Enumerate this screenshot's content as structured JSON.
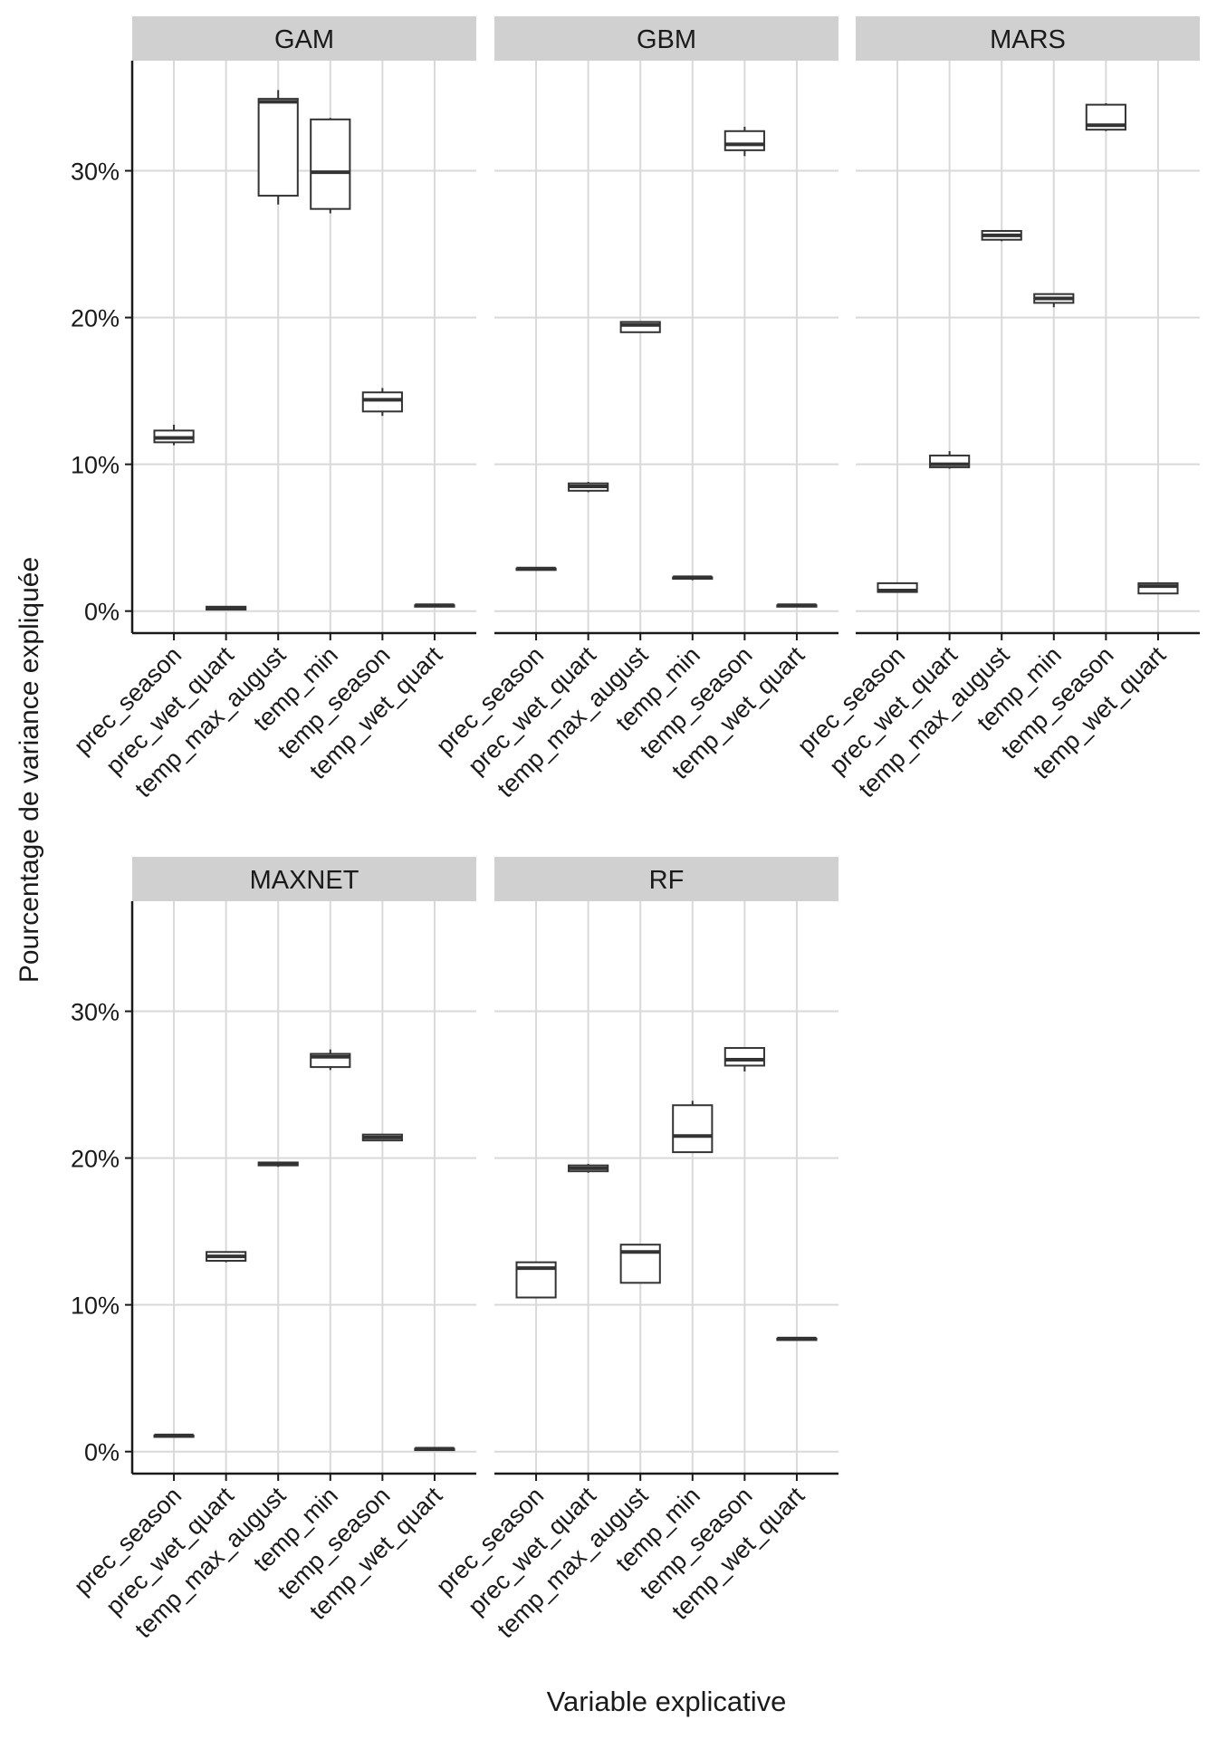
{
  "chart_data": {
    "type": "boxplot",
    "facet_by": "model",
    "xlabel": "Variable explicative",
    "ylabel": "Pourcentage de variance expliquée",
    "ylim": [
      -1.5,
      37.5
    ],
    "y_ticks": [
      0,
      10,
      20,
      30
    ],
    "y_tick_labels": [
      "0%",
      "10%",
      "20%",
      "30%"
    ],
    "grid": true,
    "categories": [
      "prec_season",
      "prec_wet_quart",
      "temp_max_august",
      "temp_min",
      "temp_season",
      "temp_wet_quart"
    ],
    "panels": [
      {
        "title": "GAM",
        "boxes": [
          {
            "min": 11.3,
            "q1": 11.5,
            "median": 11.8,
            "q3": 12.3,
            "max": 12.7
          },
          {
            "min": 0.1,
            "q1": 0.1,
            "median": 0.2,
            "q3": 0.3,
            "max": 0.3
          },
          {
            "min": 27.7,
            "q1": 28.3,
            "median": 34.7,
            "q3": 34.9,
            "max": 35.5
          },
          {
            "min": 27.1,
            "q1": 27.4,
            "median": 29.9,
            "q3": 33.5,
            "max": 33.6
          },
          {
            "min": 13.3,
            "q1": 13.6,
            "median": 14.4,
            "q3": 14.9,
            "max": 15.2
          },
          {
            "min": 0.3,
            "q1": 0.3,
            "median": 0.4,
            "q3": 0.4,
            "max": 0.4
          }
        ]
      },
      {
        "title": "GBM",
        "boxes": [
          {
            "min": 2.8,
            "q1": 2.8,
            "median": 2.9,
            "q3": 2.9,
            "max": 2.9
          },
          {
            "min": 8.1,
            "q1": 8.2,
            "median": 8.5,
            "q3": 8.7,
            "max": 8.8
          },
          {
            "min": 19.0,
            "q1": 19.0,
            "median": 19.5,
            "q3": 19.7,
            "max": 19.7
          },
          {
            "min": 2.1,
            "q1": 2.2,
            "median": 2.3,
            "q3": 2.3,
            "max": 2.3
          },
          {
            "min": 31.0,
            "q1": 31.4,
            "median": 31.8,
            "q3": 32.7,
            "max": 33.0
          },
          {
            "min": 0.3,
            "q1": 0.3,
            "median": 0.4,
            "q3": 0.4,
            "max": 0.4
          }
        ]
      },
      {
        "title": "MARS",
        "boxes": [
          {
            "min": 1.3,
            "q1": 1.3,
            "median": 1.4,
            "q3": 1.9,
            "max": 1.9
          },
          {
            "min": 9.7,
            "q1": 9.8,
            "median": 10.0,
            "q3": 10.6,
            "max": 10.9
          },
          {
            "min": 25.2,
            "q1": 25.3,
            "median": 25.6,
            "q3": 25.9,
            "max": 25.9
          },
          {
            "min": 20.7,
            "q1": 21.0,
            "median": 21.3,
            "q3": 21.6,
            "max": 21.6
          },
          {
            "min": 32.7,
            "q1": 32.8,
            "median": 33.1,
            "q3": 34.5,
            "max": 34.6
          },
          {
            "min": 1.2,
            "q1": 1.2,
            "median": 1.7,
            "q3": 1.9,
            "max": 1.9
          }
        ]
      },
      {
        "title": "MAXNET",
        "boxes": [
          {
            "min": 1.0,
            "q1": 1.0,
            "median": 1.1,
            "q3": 1.1,
            "max": 1.1
          },
          {
            "min": 12.9,
            "q1": 13.0,
            "median": 13.3,
            "q3": 13.6,
            "max": 13.6
          },
          {
            "min": 19.4,
            "q1": 19.5,
            "median": 19.6,
            "q3": 19.7,
            "max": 19.7
          },
          {
            "min": 26.0,
            "q1": 26.2,
            "median": 26.9,
            "q3": 27.1,
            "max": 27.4
          },
          {
            "min": 21.2,
            "q1": 21.2,
            "median": 21.4,
            "q3": 21.6,
            "max": 21.6
          },
          {
            "min": 0.1,
            "q1": 0.1,
            "median": 0.2,
            "q3": 0.2,
            "max": 0.2
          }
        ]
      },
      {
        "title": "RF",
        "boxes": [
          {
            "min": 10.5,
            "q1": 10.5,
            "median": 12.5,
            "q3": 12.9,
            "max": 12.9
          },
          {
            "min": 19.0,
            "q1": 19.1,
            "median": 19.3,
            "q3": 19.5,
            "max": 19.6
          },
          {
            "min": 11.5,
            "q1": 11.5,
            "median": 13.6,
            "q3": 14.1,
            "max": 14.1
          },
          {
            "min": 20.4,
            "q1": 20.4,
            "median": 21.5,
            "q3": 23.6,
            "max": 23.9
          },
          {
            "min": 25.9,
            "q1": 26.3,
            "median": 26.7,
            "q3": 27.5,
            "max": 27.5
          },
          {
            "min": 7.6,
            "q1": 7.6,
            "median": 7.7,
            "q3": 7.7,
            "max": 7.7
          }
        ]
      }
    ],
    "colors": {
      "box_stroke": "#333333",
      "box_fill": "#ffffff",
      "strip_fill": "#d0d0d0",
      "grid": "#d9d9d9",
      "axis": "#1a1a1a"
    }
  }
}
